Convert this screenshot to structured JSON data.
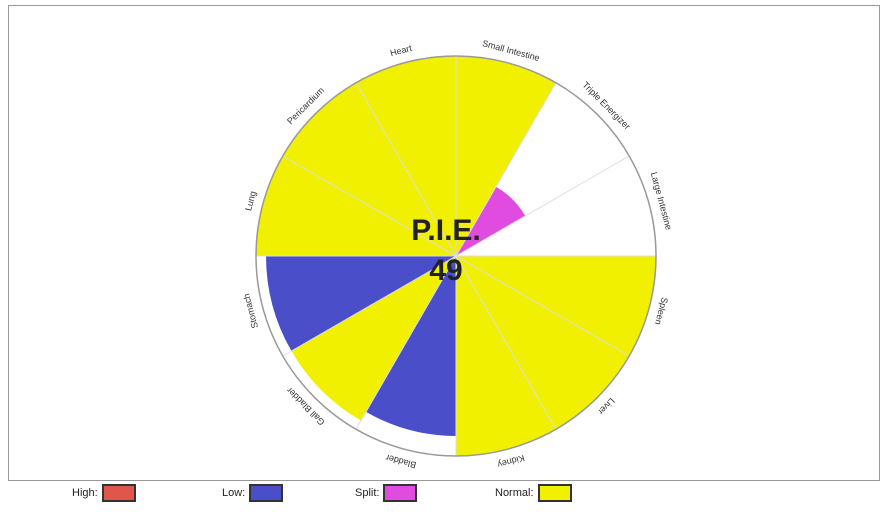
{
  "chart_data": {
    "type": "polar-area",
    "title": "P.I.E.",
    "score": 49,
    "categories": [
      "Large Intestine",
      "Triple Energizer",
      "Small Intestine",
      "Heart",
      "Pericardium",
      "Lung",
      "Stomach",
      "Gall Bladder",
      "Bladder",
      "Kidney",
      "Liver",
      "Spleen"
    ],
    "values": [
      0,
      40,
      100,
      100,
      100,
      100,
      95,
      95,
      90,
      100,
      100,
      100
    ],
    "point_colors": [
      "#f0f000",
      "#e04ce0",
      "#f0f000",
      "#f0f000",
      "#f0f000",
      "#f0f000",
      "#4a4ec8",
      "#f0f000",
      "#4a4ec8",
      "#f0f000",
      "#f0f000",
      "#f0f000"
    ],
    "rlim": [
      0,
      100
    ],
    "legend": [
      {
        "name": "High:",
        "color": "#e0564a"
      },
      {
        "name": "Low:",
        "color": "#4a4ec8"
      },
      {
        "name": "Split:",
        "color": "#e04ce0"
      },
      {
        "name": "Normal:",
        "color": "#f0f000"
      }
    ]
  }
}
